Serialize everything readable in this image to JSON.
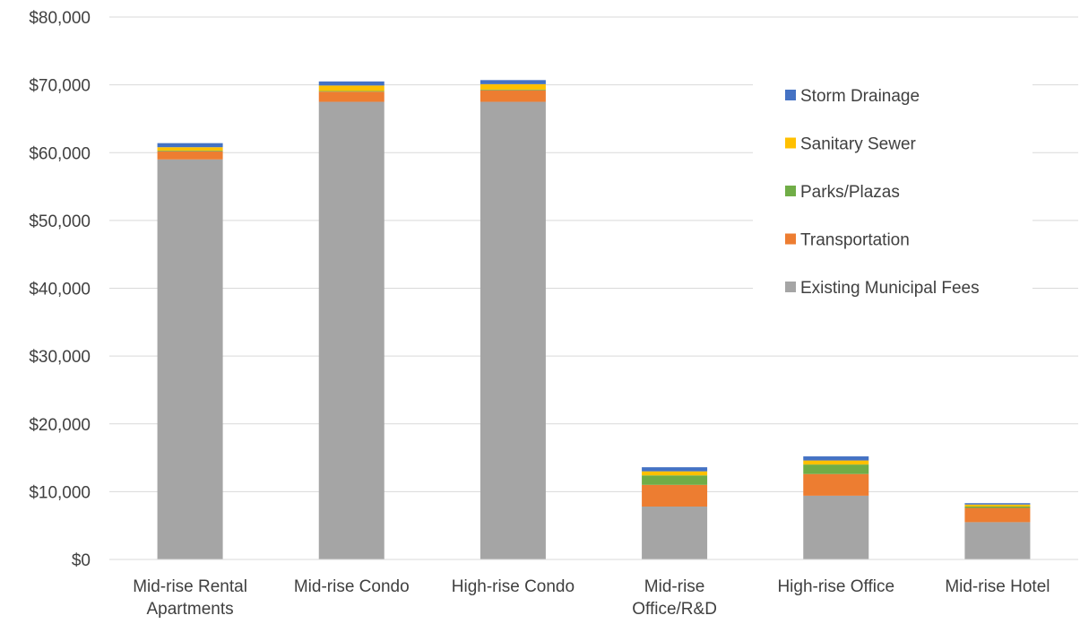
{
  "chart_data": {
    "type": "bar",
    "stacked": true,
    "title": "",
    "xlabel": "",
    "ylabel": "",
    "ylim": [
      0,
      80000
    ],
    "y_ticks": [
      0,
      10000,
      20000,
      30000,
      40000,
      50000,
      60000,
      70000,
      80000
    ],
    "y_tick_labels": [
      "$0",
      "$10,000",
      "$20,000",
      "$30,000",
      "$40,000",
      "$50,000",
      "$60,000",
      "$70,000",
      "$80,000"
    ],
    "grid": true,
    "legend_position": "top-right",
    "categories": [
      [
        "Mid-rise Rental",
        "Apartments"
      ],
      [
        "Mid-rise Condo"
      ],
      [
        "High-rise Condo"
      ],
      [
        "Mid-rise",
        "Office/R&D"
      ],
      [
        "High-rise Office"
      ],
      [
        "Mid-rise Hotel"
      ]
    ],
    "series": [
      {
        "name": "Existing Municipal Fees",
        "color": "#a5a5a5",
        "values": [
          59000,
          67500,
          67500,
          7800,
          9400,
          5500
        ]
      },
      {
        "name": "Transportation",
        "color": "#ed7d31",
        "values": [
          1200,
          1500,
          1700,
          3200,
          3200,
          2100
        ]
      },
      {
        "name": "Parks/Plazas",
        "color": "#70ad47",
        "values": [
          100,
          100,
          100,
          1400,
          1400,
          200
        ]
      },
      {
        "name": "Sanitary Sewer",
        "color": "#ffc000",
        "values": [
          500,
          800,
          800,
          600,
          600,
          300
        ]
      },
      {
        "name": "Storm Drainage",
        "color": "#4472c4",
        "values": [
          600,
          600,
          600,
          600,
          600,
          200
        ]
      }
    ]
  }
}
